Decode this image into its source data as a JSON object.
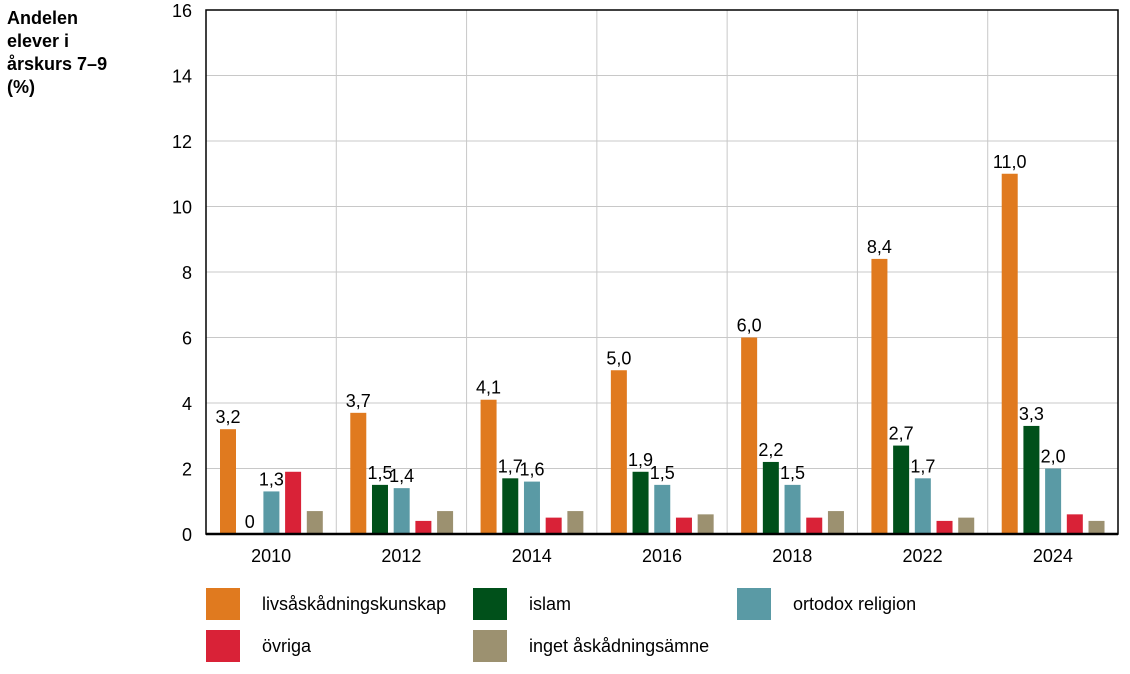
{
  "chart_data": {
    "type": "bar",
    "title": "",
    "ylabel": "Andelen\nelever i\nårskurs 7–9\n(%)",
    "xlabel": "",
    "ylim": [
      0,
      16
    ],
    "yticks": [
      0,
      2,
      4,
      6,
      8,
      10,
      12,
      14,
      16
    ],
    "grid": true,
    "legend_placement": "bottom",
    "categories": [
      "2010",
      "2012",
      "2014",
      "2016",
      "2018",
      "2022",
      "2024"
    ],
    "series": [
      {
        "name": "livsåskådningskunskap",
        "color": "#E07A1F",
        "values": [
          3.2,
          3.7,
          4.1,
          5.0,
          6.0,
          8.4,
          11.0
        ],
        "labels": [
          "3,2",
          "3,7",
          "4,1",
          "5,0",
          "6,0",
          "8,4",
          "11,0"
        ]
      },
      {
        "name": "islam",
        "color": "#00501A",
        "values": [
          0,
          1.5,
          1.7,
          1.9,
          2.2,
          2.7,
          3.3
        ],
        "labels": [
          "0",
          "1,5",
          "1,7",
          "1,9",
          "2,2",
          "2,7",
          "3,3"
        ]
      },
      {
        "name": "ortodox religion",
        "color": "#5A9AA5",
        "values": [
          1.3,
          1.4,
          1.6,
          1.5,
          1.5,
          1.7,
          2.0
        ],
        "labels": [
          "1,3",
          "1,4",
          "1,6",
          "1,5",
          "1,5",
          "1,7",
          "2,0"
        ]
      },
      {
        "name": "övriga",
        "color": "#D92237",
        "values": [
          1.9,
          0.4,
          0.5,
          0.5,
          0.5,
          0.4,
          0.6
        ],
        "labels": null
      },
      {
        "name": "inget åskådningsämne",
        "color": "#9C9170",
        "values": [
          0.7,
          0.7,
          0.7,
          0.6,
          0.7,
          0.5,
          0.4
        ],
        "labels": null
      }
    ]
  }
}
